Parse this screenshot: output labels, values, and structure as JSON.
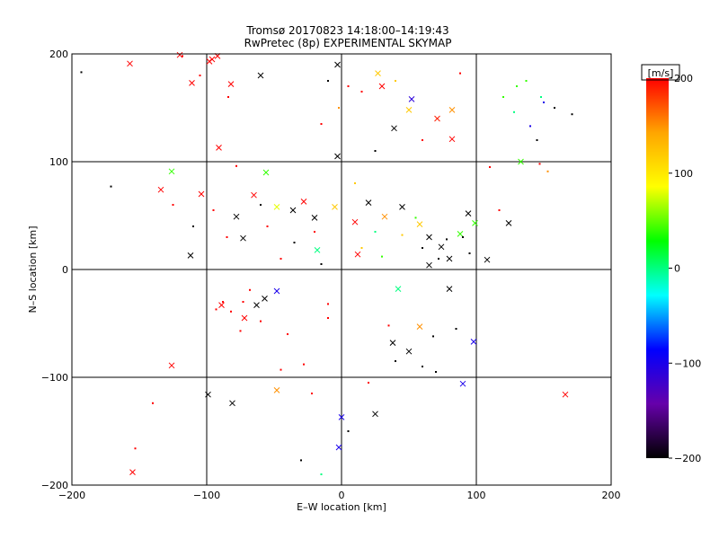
{
  "chart_data": {
    "type": "scatter",
    "title": "Tromsø 20170823 14:18:00–14:19:43",
    "subtitle": "RwPretec (8p) EXPERIMENTAL SKYMAP",
    "xlabel": "E–W location [km]",
    "ylabel": "N–S location [km]",
    "xlim": [
      -200,
      200
    ],
    "ylim": [
      -200,
      200
    ],
    "xticks": [
      "−200",
      "−100",
      "0",
      "100",
      "200"
    ],
    "yticks": [
      "−200",
      "−100",
      "0",
      "100",
      "200"
    ],
    "grid": true,
    "colorbar": {
      "label": "[m/s]",
      "range": [
        -200,
        200
      ],
      "ticks": [
        "200",
        "100",
        "0",
        "−100",
        "−200"
      ],
      "colors": [
        "#000000",
        "#6600aa",
        "#0000ff",
        "#00ffff",
        "#00ff00",
        "#ffff00",
        "#ffa500",
        "#ff0000"
      ]
    },
    "markers": {
      "x": [
        [
          -157,
          191,
          200
        ],
        [
          -120,
          199,
          200
        ],
        [
          -96,
          195,
          200
        ],
        [
          -92,
          198,
          200
        ],
        [
          -98,
          193,
          200
        ],
        [
          -111,
          173,
          200
        ],
        [
          -82,
          172,
          200
        ],
        [
          -60,
          180,
          -200
        ],
        [
          -3,
          190,
          -200
        ],
        [
          27,
          182,
          120
        ],
        [
          52,
          158,
          -110
        ],
        [
          50,
          148,
          120
        ],
        [
          82,
          148,
          150
        ],
        [
          71,
          140,
          190
        ],
        [
          39,
          131,
          -200
        ],
        [
          82,
          121,
          200
        ],
        [
          -91,
          113,
          200
        ],
        [
          -126,
          91,
          40
        ],
        [
          -134,
          74,
          200
        ],
        [
          -56,
          90,
          40
        ],
        [
          -104,
          70,
          200
        ],
        [
          -112,
          13,
          -200
        ],
        [
          -78,
          49,
          -200
        ],
        [
          -65,
          69,
          200
        ],
        [
          -48,
          58,
          80
        ],
        [
          -36,
          55,
          -200
        ],
        [
          -20,
          48,
          -200
        ],
        [
          -5,
          58,
          120
        ],
        [
          10,
          44,
          200
        ],
        [
          20,
          62,
          -200
        ],
        [
          32,
          49,
          150
        ],
        [
          45,
          58,
          -200
        ],
        [
          58,
          42,
          120
        ],
        [
          65,
          30,
          -200
        ],
        [
          74,
          21,
          -200
        ],
        [
          80,
          10,
          -200
        ],
        [
          88,
          33,
          40
        ],
        [
          94,
          52,
          -200
        ],
        [
          99,
          43,
          40
        ],
        [
          108,
          9,
          -200
        ],
        [
          124,
          43,
          -200
        ],
        [
          80,
          -18,
          -200
        ],
        [
          42,
          -18,
          0
        ],
        [
          -63,
          -33,
          -200
        ],
        [
          -57,
          -27,
          -200
        ],
        [
          -48,
          -20,
          -100
        ],
        [
          -89,
          -33,
          200
        ],
        [
          -72,
          -45,
          200
        ],
        [
          38,
          -68,
          -200
        ],
        [
          50,
          -76,
          -200
        ],
        [
          58,
          -53,
          150
        ],
        [
          98,
          -67,
          -100
        ],
        [
          -126,
          -89,
          200
        ],
        [
          -99,
          -116,
          -200
        ],
        [
          -81,
          -124,
          -200
        ],
        [
          -48,
          -112,
          150
        ],
        [
          25,
          -134,
          -200
        ],
        [
          -2,
          -165,
          -100
        ],
        [
          -155,
          -188,
          200
        ],
        [
          166,
          -116,
          200
        ],
        [
          90,
          -106,
          -100
        ],
        [
          12,
          14,
          200
        ],
        [
          -18,
          18,
          0
        ],
        [
          133,
          100,
          40
        ],
        [
          -73,
          29,
          -200
        ],
        [
          0,
          -137,
          -100
        ],
        [
          30,
          170,
          200
        ],
        [
          -3,
          105,
          -200
        ],
        [
          -28,
          63,
          200
        ],
        [
          65,
          4,
          -200
        ]
      ],
      "dot": [
        [
          -193,
          183,
          -200
        ],
        [
          -171,
          77,
          -200
        ],
        [
          -118,
          198,
          200
        ],
        [
          -105,
          180,
          200
        ],
        [
          -84,
          160,
          200
        ],
        [
          -78,
          96,
          200
        ],
        [
          -140,
          -124,
          200
        ],
        [
          -153,
          -166,
          200
        ],
        [
          -28,
          -88,
          200
        ],
        [
          -22,
          -115,
          200
        ],
        [
          -45,
          -93,
          200
        ],
        [
          20,
          -105,
          200
        ],
        [
          5,
          -150,
          -200
        ],
        [
          -30,
          -177,
          -200
        ],
        [
          -15,
          -190,
          0
        ],
        [
          10,
          80,
          120
        ],
        [
          25,
          110,
          -200
        ],
        [
          -2,
          150,
          150
        ],
        [
          -15,
          135,
          200
        ],
        [
          15,
          165,
          200
        ],
        [
          40,
          175,
          120
        ],
        [
          60,
          120,
          200
        ],
        [
          -10,
          175,
          -200
        ],
        [
          5,
          170,
          200
        ],
        [
          88,
          182,
          200
        ],
        [
          120,
          160,
          40
        ],
        [
          128,
          146,
          0
        ],
        [
          140,
          133,
          -100
        ],
        [
          150,
          155,
          -100
        ],
        [
          137,
          175,
          40
        ],
        [
          148,
          160,
          0
        ],
        [
          158,
          150,
          -200
        ],
        [
          171,
          144,
          -200
        ],
        [
          130,
          170,
          40
        ],
        [
          145,
          120,
          -200
        ],
        [
          110,
          95,
          200
        ],
        [
          153,
          91,
          150
        ],
        [
          147,
          98,
          200
        ],
        [
          117,
          55,
          200
        ],
        [
          -88,
          -30,
          200
        ],
        [
          -82,
          -39,
          200
        ],
        [
          -73,
          -30,
          200
        ],
        [
          -93,
          -37,
          200
        ],
        [
          -68,
          -19,
          200
        ],
        [
          -40,
          -60,
          200
        ],
        [
          -75,
          -57,
          200
        ],
        [
          -60,
          -48,
          200
        ],
        [
          -10,
          -45,
          200
        ],
        [
          -10,
          -32,
          200
        ],
        [
          40,
          -85,
          -200
        ],
        [
          60,
          -90,
          -200
        ],
        [
          70,
          -95,
          -200
        ],
        [
          35,
          -52,
          200
        ],
        [
          68,
          -62,
          -200
        ],
        [
          85,
          -55,
          -200
        ],
        [
          90,
          30,
          -200
        ],
        [
          72,
          10,
          -200
        ],
        [
          60,
          20,
          -200
        ],
        [
          78,
          28,
          -200
        ],
        [
          95,
          15,
          -200
        ],
        [
          55,
          48,
          40
        ],
        [
          45,
          32,
          120
        ],
        [
          30,
          12,
          40
        ],
        [
          25,
          35,
          0
        ],
        [
          15,
          20,
          120
        ],
        [
          -20,
          35,
          200
        ],
        [
          -35,
          25,
          -200
        ],
        [
          -55,
          40,
          200
        ],
        [
          -45,
          10,
          200
        ],
        [
          -15,
          5,
          -200
        ],
        [
          -95,
          55,
          200
        ],
        [
          -85,
          30,
          200
        ],
        [
          -125,
          60,
          200
        ],
        [
          -110,
          40,
          -200
        ],
        [
          -60,
          60,
          -200
        ]
      ]
    }
  }
}
